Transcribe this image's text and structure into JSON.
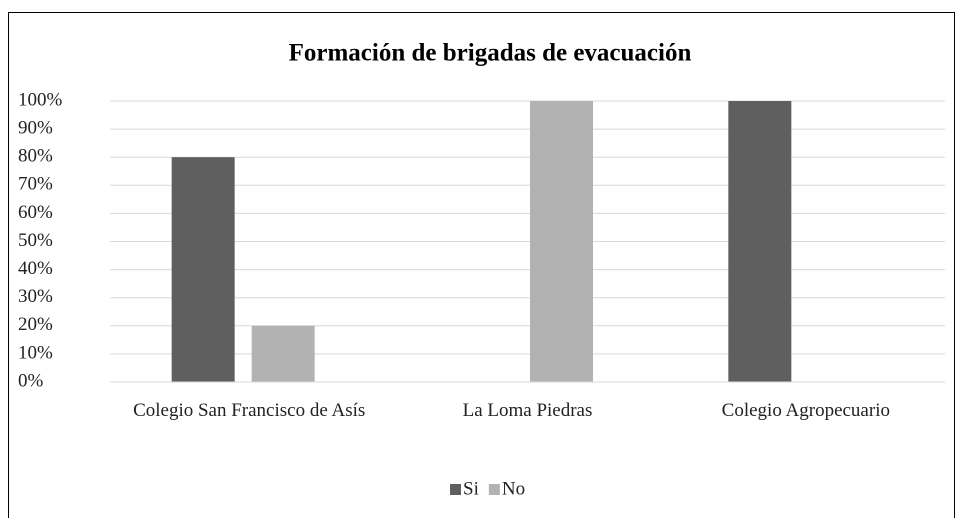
{
  "chart_data": {
    "type": "bar",
    "title": "Formación de brigadas de evacuación",
    "categories": [
      "Colegio San Francisco de Asís",
      "La Loma Piedras",
      "Colegio Agropecuario"
    ],
    "series": [
      {
        "name": "Si",
        "color": "#5f5f5f",
        "values": [
          80,
          0,
          100
        ]
      },
      {
        "name": "No",
        "color": "#b2b2b2",
        "values": [
          20,
          100,
          0
        ]
      }
    ],
    "ylim": [
      0,
      100
    ],
    "yticks": [
      {
        "value": 0,
        "label": "0%"
      },
      {
        "value": 10,
        "label": "10%"
      },
      {
        "value": 20,
        "label": "20%"
      },
      {
        "value": 30,
        "label": "30%"
      },
      {
        "value": 40,
        "label": "40%"
      },
      {
        "value": 50,
        "label": "50%"
      },
      {
        "value": 60,
        "label": "60%"
      },
      {
        "value": 70,
        "label": "70%"
      },
      {
        "value": 80,
        "label": "80%"
      },
      {
        "value": 90,
        "label": "90%"
      },
      {
        "value": 100,
        "label": "100%"
      }
    ],
    "grid": true,
    "legend": "bottom"
  }
}
